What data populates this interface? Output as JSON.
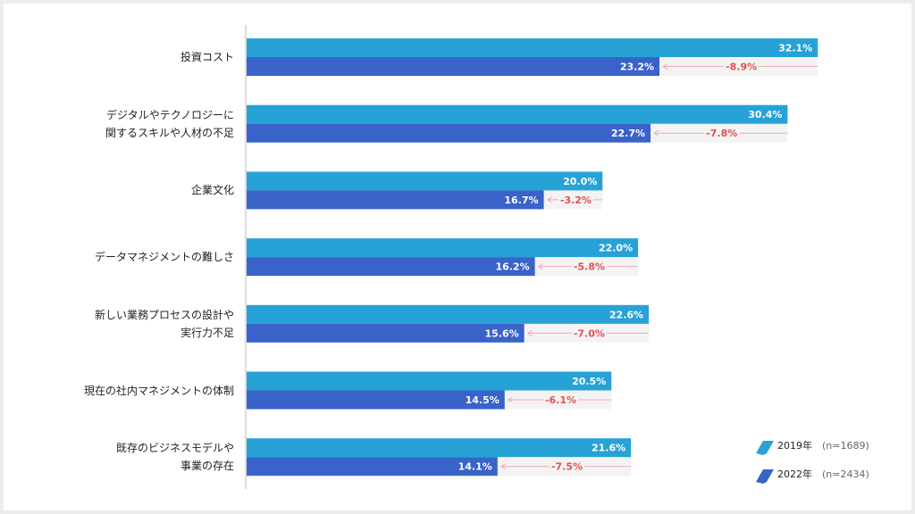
{
  "chart_data": {
    "type": "bar",
    "orientation": "horizontal",
    "categories": [
      "投資コスト",
      "デジタルやテクノロジーに\n関するスキルや人材の不足",
      "企業文化",
      "データマネジメントの難しさ",
      "新しい業務プロセスの設計や\n実行力不足",
      "現在の社内マネジメントの体制",
      "既存のビジネスモデルや\n事業の存在"
    ],
    "series": [
      {
        "name": "2019年",
        "sample_size": "(n=1689)",
        "color": "#27a2d6",
        "values": [
          32.1,
          30.4,
          20.0,
          22.0,
          22.6,
          20.5,
          21.6
        ],
        "value_labels": [
          "32.1%",
          "30.4%",
          "20.0%",
          "22.0%",
          "22.6%",
          "20.5%",
          "21.6%"
        ]
      },
      {
        "name": "2022年",
        "sample_size": "(n=2434)",
        "color": "#3a63c9",
        "values": [
          23.2,
          22.7,
          16.7,
          16.2,
          15.6,
          14.5,
          14.1
        ],
        "value_labels": [
          "23.2%",
          "22.7%",
          "16.7%",
          "16.2%",
          "15.6%",
          "14.5%",
          "14.1%"
        ]
      }
    ],
    "changes": {
      "color": "#e4504f",
      "values": [
        -8.9,
        -7.8,
        -3.2,
        -5.8,
        -7.0,
        -6.1,
        -7.5
      ],
      "value_labels": [
        "-8.9%",
        "-7.8%",
        "-3.2%",
        "-5.8%",
        "-7.0%",
        "-6.1%",
        "-7.5%"
      ]
    },
    "xlim": [
      0,
      35
    ]
  }
}
